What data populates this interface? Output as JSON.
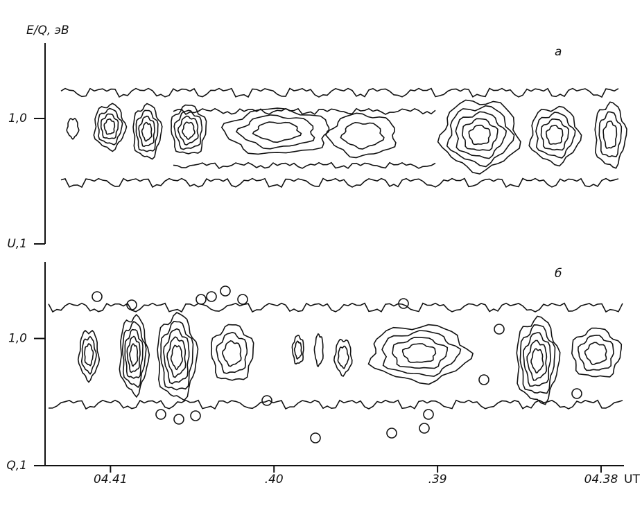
{
  "chart_data": [
    {
      "type": "contour",
      "panel_label": "а",
      "y_label": "E/Q, эВ",
      "yscale": "log",
      "ylim": [
        0.1,
        4
      ],
      "yticks": [
        {
          "value": 0.1,
          "label": "U,1"
        },
        {
          "value": 1,
          "label": "1,0"
        }
      ]
    },
    {
      "type": "contour",
      "panel_label": "б",
      "yscale": "log",
      "ylim": [
        0.1,
        4
      ],
      "yticks": [
        {
          "value": 0.1,
          "label": "Q,1"
        },
        {
          "value": 1,
          "label": "1,0"
        }
      ],
      "x_label": "UT",
      "xlim": [
        41.4,
        37.86
      ],
      "xticks": [
        {
          "value": 41,
          "label": "04.41"
        },
        {
          "value": 40,
          "label": ".40"
        },
        {
          "value": 39,
          "label": ".39"
        },
        {
          "value": 38,
          "label": "04.38"
        }
      ]
    }
  ]
}
